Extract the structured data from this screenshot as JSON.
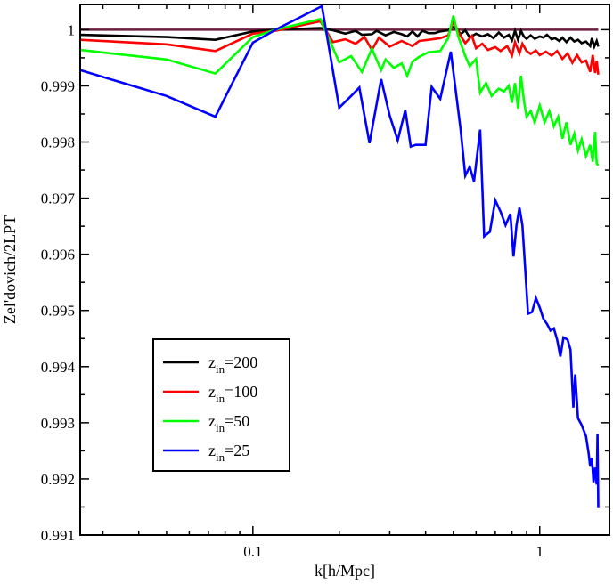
{
  "chart_data": {
    "type": "line",
    "xlabel": "k[h/Mpc]",
    "ylabel": "Zel'dovich/2LPT",
    "x_scale": "log",
    "xlim": [
      0.025,
      1.75
    ],
    "ylim": [
      0.991,
      1.00045
    ],
    "x_ticks": [
      0.1,
      1
    ],
    "x_tick_labels": [
      "0.1",
      "1"
    ],
    "y_ticks": [
      0.991,
      0.992,
      0.993,
      0.994,
      0.995,
      0.996,
      0.997,
      0.998,
      0.999,
      1
    ],
    "y_tick_labels": [
      "0.991",
      "0.992",
      "0.993",
      "0.994",
      "0.995",
      "0.996",
      "0.997",
      "0.998",
      "0.999",
      "1"
    ],
    "legend_position": "lower-left",
    "reference_line": {
      "y": 1,
      "color": "#6b1f3f"
    },
    "series": [
      {
        "name_base": "z",
        "name_sub": "in",
        "name_value": "=200",
        "color": "#000000",
        "points": [
          [
            0.025,
            0.99991
          ],
          [
            0.05,
            0.99987
          ],
          [
            0.074,
            0.99982
          ],
          [
            0.1,
            0.99997
          ],
          [
            0.12,
            1.0
          ],
          [
            0.172,
            1.00003
          ],
          [
            0.19,
            0.99999
          ],
          [
            0.21,
            0.99993
          ],
          [
            0.228,
            0.99998
          ],
          [
            0.24,
            0.99991
          ],
          [
            0.26,
            0.99992
          ],
          [
            0.27,
            0.99998
          ],
          [
            0.29,
            0.9999
          ],
          [
            0.31,
            0.99996
          ],
          [
            0.33,
            0.99992
          ],
          [
            0.345,
            0.99988
          ],
          [
            0.36,
            0.99997
          ],
          [
            0.375,
            0.99988
          ],
          [
            0.39,
            0.99998
          ],
          [
            0.41,
            0.99994
          ],
          [
            0.43,
            0.99994
          ],
          [
            0.45,
            0.99997
          ],
          [
            0.48,
            0.99999
          ],
          [
            0.495,
            1.00005
          ],
          [
            0.51,
            1.00003
          ],
          [
            0.53,
            0.99992
          ],
          [
            0.55,
            0.99999
          ],
          [
            0.57,
            0.99986
          ],
          [
            0.6,
            0.99993
          ],
          [
            0.63,
            0.99988
          ],
          [
            0.66,
            0.99992
          ],
          [
            0.69,
            0.99985
          ],
          [
            0.72,
            0.99995
          ],
          [
            0.75,
            0.99986
          ],
          [
            0.78,
            0.99991
          ],
          [
            0.8,
            0.99981
          ],
          [
            0.82,
            0.99998
          ],
          [
            0.84,
            0.99982
          ],
          [
            0.86,
            0.99998
          ],
          [
            0.88,
            0.99988
          ],
          [
            0.9,
            0.99984
          ],
          [
            0.93,
            0.9999
          ],
          [
            0.96,
            0.99984
          ],
          [
            1.0,
            0.99988
          ],
          [
            1.03,
            0.99986
          ],
          [
            1.06,
            0.99991
          ],
          [
            1.1,
            0.99983
          ],
          [
            1.13,
            0.99985
          ],
          [
            1.17,
            0.9998
          ],
          [
            1.2,
            0.99986
          ],
          [
            1.24,
            0.99978
          ],
          [
            1.28,
            0.99986
          ],
          [
            1.32,
            0.99979
          ],
          [
            1.36,
            0.99982
          ],
          [
            1.4,
            0.99976
          ],
          [
            1.45,
            0.99979
          ],
          [
            1.5,
            0.99971
          ],
          [
            1.52,
            0.99985
          ],
          [
            1.55,
            0.9997
          ],
          [
            1.58,
            0.9998
          ],
          [
            1.6,
            0.9997
          ]
        ]
      },
      {
        "name_base": "z",
        "name_sub": "in",
        "name_value": "=100",
        "color": "#ff0000",
        "points": [
          [
            0.025,
            0.99982
          ],
          [
            0.05,
            0.99974
          ],
          [
            0.074,
            0.99962
          ],
          [
            0.1,
            0.99993
          ],
          [
            0.12,
            0.99998
          ],
          [
            0.172,
            1.00015
          ],
          [
            0.19,
            0.99978
          ],
          [
            0.21,
            0.99983
          ],
          [
            0.228,
            0.99975
          ],
          [
            0.245,
            0.99987
          ],
          [
            0.26,
            0.99964
          ],
          [
            0.275,
            0.99986
          ],
          [
            0.3,
            0.9997
          ],
          [
            0.33,
            0.9998
          ],
          [
            0.36,
            0.99971
          ],
          [
            0.38,
            0.9998
          ],
          [
            0.41,
            0.99982
          ],
          [
            0.45,
            0.99985
          ],
          [
            0.48,
            0.9999
          ],
          [
            0.5,
            1.00015
          ],
          [
            0.52,
            0.99996
          ],
          [
            0.55,
            0.99976
          ],
          [
            0.58,
            0.99989
          ],
          [
            0.6,
            0.99967
          ],
          [
            0.63,
            0.99975
          ],
          [
            0.66,
            0.99964
          ],
          [
            0.7,
            0.99969
          ],
          [
            0.73,
            0.99962
          ],
          [
            0.77,
            0.99971
          ],
          [
            0.8,
            0.99954
          ],
          [
            0.82,
            0.99978
          ],
          [
            0.85,
            0.99958
          ],
          [
            0.87,
            0.99975
          ],
          [
            0.9,
            0.99962
          ],
          [
            0.93,
            0.99957
          ],
          [
            0.97,
            0.99963
          ],
          [
            1.0,
            0.99955
          ],
          [
            1.05,
            0.99961
          ],
          [
            1.1,
            0.99954
          ],
          [
            1.15,
            0.99962
          ],
          [
            1.2,
            0.99948
          ],
          [
            1.25,
            0.99958
          ],
          [
            1.3,
            0.99941
          ],
          [
            1.35,
            0.99955
          ],
          [
            1.4,
            0.99942
          ],
          [
            1.45,
            0.99945
          ],
          [
            1.5,
            0.99925
          ],
          [
            1.53,
            0.99955
          ],
          [
            1.56,
            0.99923
          ],
          [
            1.58,
            0.99945
          ],
          [
            1.6,
            0.9992
          ]
        ]
      },
      {
        "name_base": "z",
        "name_sub": "in",
        "name_value": "=50",
        "color": "#00ff00",
        "points": [
          [
            0.025,
            0.99964
          ],
          [
            0.05,
            0.99947
          ],
          [
            0.074,
            0.99922
          ],
          [
            0.1,
            0.99987
          ],
          [
            0.12,
            1.0
          ],
          [
            0.172,
            1.00019
          ],
          [
            0.2,
            0.99942
          ],
          [
            0.22,
            0.99953
          ],
          [
            0.24,
            0.99925
          ],
          [
            0.26,
            0.99966
          ],
          [
            0.28,
            0.99928
          ],
          [
            0.29,
            0.99947
          ],
          [
            0.31,
            0.99932
          ],
          [
            0.33,
            0.9994
          ],
          [
            0.345,
            0.99918
          ],
          [
            0.36,
            0.99943
          ],
          [
            0.38,
            0.99952
          ],
          [
            0.41,
            0.9996
          ],
          [
            0.45,
            0.99962
          ],
          [
            0.48,
            0.99985
          ],
          [
            0.5,
            1.00025
          ],
          [
            0.52,
            0.99988
          ],
          [
            0.55,
            0.99953
          ],
          [
            0.57,
            0.99935
          ],
          [
            0.6,
            0.99948
          ],
          [
            0.62,
            0.99888
          ],
          [
            0.65,
            0.99905
          ],
          [
            0.68,
            0.99882
          ],
          [
            0.72,
            0.99895
          ],
          [
            0.75,
            0.9989
          ],
          [
            0.78,
            0.999
          ],
          [
            0.8,
            0.9987
          ],
          [
            0.82,
            0.99905
          ],
          [
            0.84,
            0.9986
          ],
          [
            0.86,
            0.99918
          ],
          [
            0.88,
            0.99875
          ],
          [
            0.9,
            0.99845
          ],
          [
            0.93,
            0.99855
          ],
          [
            0.96,
            0.99835
          ],
          [
            1.0,
            0.99865
          ],
          [
            1.04,
            0.99835
          ],
          [
            1.08,
            0.99855
          ],
          [
            1.12,
            0.99828
          ],
          [
            1.16,
            0.99845
          ],
          [
            1.2,
            0.99806
          ],
          [
            1.24,
            0.99835
          ],
          [
            1.28,
            0.99795
          ],
          [
            1.32,
            0.99815
          ],
          [
            1.36,
            0.99785
          ],
          [
            1.4,
            0.99805
          ],
          [
            1.45,
            0.99775
          ],
          [
            1.5,
            0.99795
          ],
          [
            1.53,
            0.99765
          ],
          [
            1.56,
            0.99818
          ],
          [
            1.58,
            0.99762
          ],
          [
            1.6,
            0.99758
          ]
        ]
      },
      {
        "name_base": "z",
        "name_sub": "in",
        "name_value": "=25",
        "color": "#0000ff",
        "points": [
          [
            0.025,
            0.99928
          ],
          [
            0.05,
            0.99882
          ],
          [
            0.074,
            0.99845
          ],
          [
            0.1,
            0.99977
          ],
          [
            0.12,
            1.0
          ],
          [
            0.174,
            1.00042
          ],
          [
            0.2,
            0.99861
          ],
          [
            0.22,
            0.99882
          ],
          [
            0.235,
            0.99897
          ],
          [
            0.255,
            0.99798
          ],
          [
            0.28,
            0.99912
          ],
          [
            0.3,
            0.99847
          ],
          [
            0.32,
            0.99803
          ],
          [
            0.34,
            0.99857
          ],
          [
            0.355,
            0.99792
          ],
          [
            0.37,
            0.99795
          ],
          [
            0.4,
            0.99795
          ],
          [
            0.42,
            0.99898
          ],
          [
            0.45,
            0.99877
          ],
          [
            0.49,
            0.99961
          ],
          [
            0.53,
            0.99822
          ],
          [
            0.55,
            0.9974
          ],
          [
            0.57,
            0.99756
          ],
          [
            0.59,
            0.9973
          ],
          [
            0.62,
            0.99822
          ],
          [
            0.64,
            0.99632
          ],
          [
            0.67,
            0.9964
          ],
          [
            0.7,
            0.99696
          ],
          [
            0.73,
            0.99676
          ],
          [
            0.76,
            0.99652
          ],
          [
            0.79,
            0.99672
          ],
          [
            0.81,
            0.99596
          ],
          [
            0.83,
            0.99652
          ],
          [
            0.85,
            0.99683
          ],
          [
            0.87,
            0.99652
          ],
          [
            0.89,
            0.99573
          ],
          [
            0.91,
            0.99494
          ],
          [
            0.94,
            0.99497
          ],
          [
            0.97,
            0.99522
          ],
          [
            1.0,
            0.99505
          ],
          [
            1.03,
            0.99485
          ],
          [
            1.06,
            0.99476
          ],
          [
            1.09,
            0.99464
          ],
          [
            1.12,
            0.99468
          ],
          [
            1.15,
            0.99448
          ],
          [
            1.18,
            0.99418
          ],
          [
            1.21,
            0.99452
          ],
          [
            1.25,
            0.99448
          ],
          [
            1.28,
            0.9943
          ],
          [
            1.31,
            0.99327
          ],
          [
            1.33,
            0.99386
          ],
          [
            1.36,
            0.99308
          ],
          [
            1.4,
            0.99296
          ],
          [
            1.45,
            0.99276
          ],
          [
            1.48,
            0.99246
          ],
          [
            1.5,
            0.99222
          ],
          [
            1.52,
            0.99237
          ],
          [
            1.54,
            0.99194
          ],
          [
            1.56,
            0.9922
          ],
          [
            1.58,
            0.9919
          ],
          [
            1.59,
            0.9928
          ],
          [
            1.6,
            0.99148
          ]
        ]
      }
    ]
  }
}
